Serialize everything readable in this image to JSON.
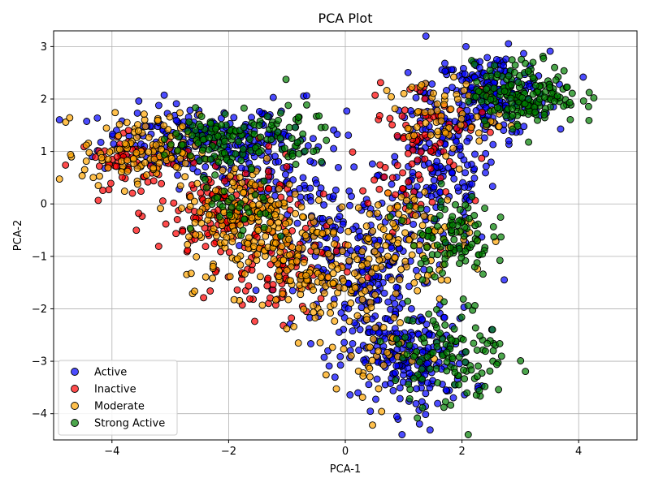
{
  "chart_data": {
    "type": "scatter",
    "title": "PCA Plot",
    "xlabel": "PCA-1",
    "ylabel": "PCA-2",
    "xlim": [
      -5,
      5
    ],
    "ylim": [
      -4.5,
      3.3
    ],
    "xticks": [
      -4,
      -2,
      0,
      2,
      4
    ],
    "yticks": [
      -4,
      -3,
      -2,
      -1,
      0,
      1,
      2,
      3
    ],
    "grid": true,
    "legend_position": "lower-left",
    "series": [
      {
        "name": "Active",
        "color": "#0000ff",
        "clusters": [
          {
            "center": [
              -2.6,
              1.2
            ],
            "spread": [
              0.8,
              0.35
            ],
            "count": 180
          },
          {
            "center": [
              -1.2,
              0.9
            ],
            "spread": [
              0.6,
              0.5
            ],
            "count": 100
          },
          {
            "center": [
              1.6,
              0.6
            ],
            "spread": [
              0.5,
              0.8
            ],
            "count": 180
          },
          {
            "center": [
              2.5,
              2.1
            ],
            "spread": [
              0.5,
              0.4
            ],
            "count": 200
          },
          {
            "center": [
              0.4,
              -1.6
            ],
            "spread": [
              0.4,
              0.9
            ],
            "count": 180
          },
          {
            "center": [
              1.2,
              -3.0
            ],
            "spread": [
              0.5,
              0.5
            ],
            "count": 180
          },
          {
            "center": [
              -0.4,
              -0.6
            ],
            "spread": [
              0.4,
              0.6
            ],
            "count": 80
          }
        ]
      },
      {
        "name": "Inactive",
        "color": "#ff0000",
        "clusters": [
          {
            "center": [
              -3.6,
              0.8
            ],
            "spread": [
              0.5,
              0.25
            ],
            "count": 70
          },
          {
            "center": [
              -2.0,
              -0.2
            ],
            "spread": [
              0.6,
              0.5
            ],
            "count": 150
          },
          {
            "center": [
              -1.1,
              -1.2
            ],
            "spread": [
              0.5,
              0.5
            ],
            "count": 100
          },
          {
            "center": [
              1.4,
              1.6
            ],
            "spread": [
              0.5,
              0.4
            ],
            "count": 60
          },
          {
            "center": [
              0.8,
              0.2
            ],
            "spread": [
              0.5,
              0.5
            ],
            "count": 40
          }
        ]
      },
      {
        "name": "Moderate",
        "color": "#ffa500",
        "clusters": [
          {
            "center": [
              -3.5,
              1.0
            ],
            "spread": [
              0.5,
              0.35
            ],
            "count": 120
          },
          {
            "center": [
              -1.6,
              -0.4
            ],
            "spread": [
              0.6,
              0.6
            ],
            "count": 200
          },
          {
            "center": [
              -0.5,
              -1.3
            ],
            "spread": [
              0.5,
              0.5
            ],
            "count": 90
          },
          {
            "center": [
              1.0,
              -0.7
            ],
            "spread": [
              0.6,
              0.5
            ],
            "count": 120
          },
          {
            "center": [
              1.6,
              1.7
            ],
            "spread": [
              0.5,
              0.35
            ],
            "count": 60
          },
          {
            "center": [
              0.4,
              -2.7
            ],
            "spread": [
              0.4,
              0.6
            ],
            "count": 50
          }
        ]
      },
      {
        "name": "Strong Active",
        "color": "#008000",
        "clusters": [
          {
            "center": [
              -2.3,
              1.2
            ],
            "spread": [
              0.4,
              0.3
            ],
            "count": 90
          },
          {
            "center": [
              -1.2,
              1.3
            ],
            "spread": [
              0.5,
              0.3
            ],
            "count": 60
          },
          {
            "center": [
              3.1,
              2.1
            ],
            "spread": [
              0.45,
              0.3
            ],
            "count": 180
          },
          {
            "center": [
              1.8,
              -0.6
            ],
            "spread": [
              0.35,
              0.4
            ],
            "count": 100
          },
          {
            "center": [
              1.8,
              -2.9
            ],
            "spread": [
              0.5,
              0.5
            ],
            "count": 120
          },
          {
            "center": [
              -1.8,
              -0.2
            ],
            "spread": [
              0.3,
              0.3
            ],
            "count": 30
          }
        ]
      }
    ]
  }
}
